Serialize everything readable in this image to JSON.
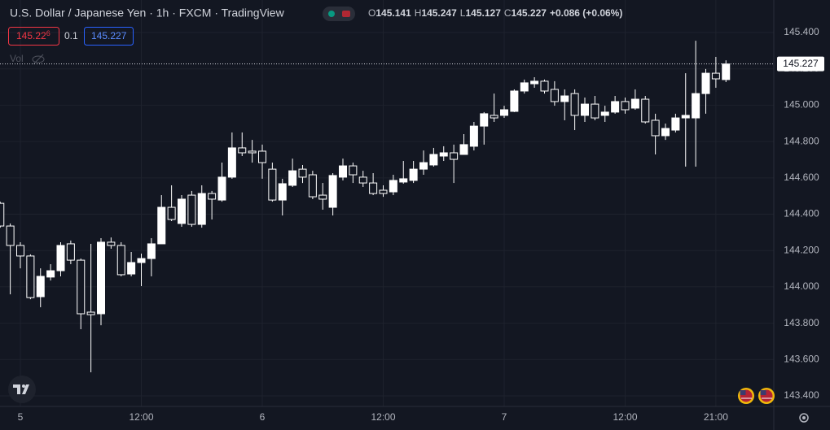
{
  "header": {
    "title": "U.S. Dollar / Japanese Yen · 1h · FXCM · TradingView",
    "ohlc": [
      {
        "key": "O",
        "value": "145.141"
      },
      {
        "key": "H",
        "value": "145.247"
      },
      {
        "key": "L",
        "value": "145.127"
      },
      {
        "key": "C",
        "value": "145.227"
      }
    ],
    "change": "+0.086 (+0.06%)"
  },
  "trade": {
    "sell": "145.22",
    "sell_pip": "6",
    "spread": "0.1",
    "buy": "145.227"
  },
  "volume_label": "Vol",
  "chart_data": {
    "type": "candlestick",
    "categories": [
      null,
      null,
      "5",
      null,
      null,
      null,
      null,
      null,
      null,
      null,
      null,
      null,
      null,
      null,
      "12:00",
      null,
      null,
      null,
      null,
      null,
      null,
      null,
      null,
      null,
      null,
      null,
      "6",
      null,
      null,
      null,
      null,
      null,
      null,
      null,
      null,
      null,
      null,
      null,
      "12:00",
      null,
      null,
      null,
      null,
      null,
      null,
      null,
      null,
      null,
      null,
      null,
      "7",
      null,
      null,
      null,
      null,
      null,
      null,
      null,
      null,
      null,
      null,
      null,
      "12:00",
      null,
      null,
      null,
      null,
      null,
      null,
      null,
      null,
      "21:00",
      null
    ],
    "open": [
      144.46,
      144.335,
      144.228,
      144.17,
      143.946,
      144.054,
      144.089,
      144.237,
      144.147,
      143.861,
      143.852,
      144.246,
      144.228,
      144.071,
      144.134,
      144.156,
      144.237,
      144.438,
      144.349,
      144.505,
      144.344,
      144.514,
      144.478,
      144.604,
      144.765,
      144.747,
      144.747,
      144.648,
      144.478,
      144.559,
      144.648,
      144.617,
      144.505,
      144.438,
      144.604,
      144.666,
      144.604,
      144.572,
      144.532,
      144.523,
      144.577,
      144.586,
      144.648,
      144.671,
      144.72,
      144.738,
      144.729,
      144.774,
      144.885,
      144.944,
      144.944,
      144.966,
      145.078,
      145.118,
      145.132,
      145.087,
      145.02,
      145.064,
      144.944,
      145.006,
      144.944,
      144.962,
      145.02,
      144.984,
      145.033,
      144.917,
      144.832,
      144.863,
      144.93,
      144.93,
      145.064,
      145.176,
      145.141
    ],
    "high": [
      144.469,
      144.349,
      144.246,
      144.179,
      144.102,
      144.125,
      144.246,
      144.255,
      144.156,
      144.237,
      144.268,
      144.272,
      144.246,
      144.192,
      144.183,
      144.268,
      144.505,
      144.559,
      144.505,
      144.528,
      144.559,
      144.528,
      144.684,
      144.85,
      144.85,
      144.809,
      144.783,
      144.684,
      144.595,
      144.706,
      144.671,
      144.639,
      144.572,
      144.626,
      144.706,
      144.684,
      144.639,
      144.626,
      144.559,
      144.617,
      144.693,
      144.693,
      144.751,
      144.765,
      144.774,
      144.783,
      144.841,
      144.908,
      144.962,
      145.064,
      144.997,
      145.087,
      145.141,
      145.154,
      145.141,
      145.132,
      145.087,
      145.087,
      145.042,
      145.051,
      144.997,
      145.051,
      145.042,
      145.087,
      145.051,
      144.953,
      144.899,
      144.953,
      145.176,
      145.355,
      145.199,
      145.266,
      145.247
    ],
    "low": [
      144.326,
      143.959,
      144.102,
      143.932,
      143.888,
      144.035,
      144.058,
      144.125,
      143.767,
      143.53,
      143.789,
      144.21,
      144.058,
      144.058,
      144.004,
      144.058,
      144.237,
      144.362,
      144.331,
      144.331,
      144.326,
      144.371,
      144.469,
      144.595,
      144.72,
      144.684,
      144.595,
      144.469,
      144.393,
      144.55,
      144.572,
      144.483,
      144.425,
      144.393,
      144.586,
      144.572,
      144.55,
      144.505,
      144.496,
      144.505,
      144.568,
      144.572,
      144.617,
      144.662,
      144.693,
      144.572,
      144.729,
      144.751,
      144.783,
      144.908,
      144.93,
      144.962,
      145.064,
      145.096,
      145.064,
      144.997,
      144.917,
      144.863,
      144.908,
      144.917,
      144.908,
      144.953,
      144.953,
      144.975,
      144.899,
      144.729,
      144.809,
      144.85,
      144.662,
      144.662,
      144.953,
      145.096,
      145.127
    ],
    "close": [
      144.335,
      144.228,
      144.17,
      143.941,
      144.058,
      144.089,
      144.228,
      144.147,
      143.852,
      143.847,
      144.246,
      144.228,
      144.067,
      144.134,
      144.156,
      144.237,
      144.438,
      144.371,
      144.483,
      144.344,
      144.514,
      144.483,
      144.604,
      144.765,
      144.738,
      144.738,
      144.684,
      144.478,
      144.568,
      144.639,
      144.604,
      144.496,
      144.483,
      144.613,
      144.666,
      144.617,
      144.572,
      144.514,
      144.514,
      144.586,
      144.595,
      144.648,
      144.684,
      144.729,
      144.738,
      144.702,
      144.783,
      144.885,
      144.953,
      144.93,
      144.975,
      145.078,
      145.123,
      145.132,
      145.078,
      145.02,
      145.051,
      144.944,
      145.006,
      144.93,
      144.962,
      145.02,
      144.975,
      145.033,
      144.908,
      144.832,
      144.872,
      144.93,
      144.944,
      145.064,
      145.176,
      145.145,
      145.227
    ],
    "up_color": "#ffffff",
    "down_color": "#131722",
    "wick_color": "#ffffff",
    "ylim": [
      143.342,
      145.579
    ],
    "yticks": [
      {
        "value": 143.4,
        "label": "143.400"
      },
      {
        "value": 143.6,
        "label": "143.600"
      },
      {
        "value": 143.8,
        "label": "143.800"
      },
      {
        "value": 144.0,
        "label": "144.000"
      },
      {
        "value": 144.2,
        "label": "144.200"
      },
      {
        "value": 144.4,
        "label": "144.400"
      },
      {
        "value": 144.6,
        "label": "144.600"
      },
      {
        "value": 144.8,
        "label": "144.800"
      },
      {
        "value": 145.0,
        "label": "145.000"
      },
      {
        "value": 145.2,
        "label": "145.200"
      },
      {
        "value": 145.4,
        "label": "145.400"
      }
    ],
    "last_price": {
      "value": 145.227,
      "label": "145.227"
    },
    "grid": true
  }
}
